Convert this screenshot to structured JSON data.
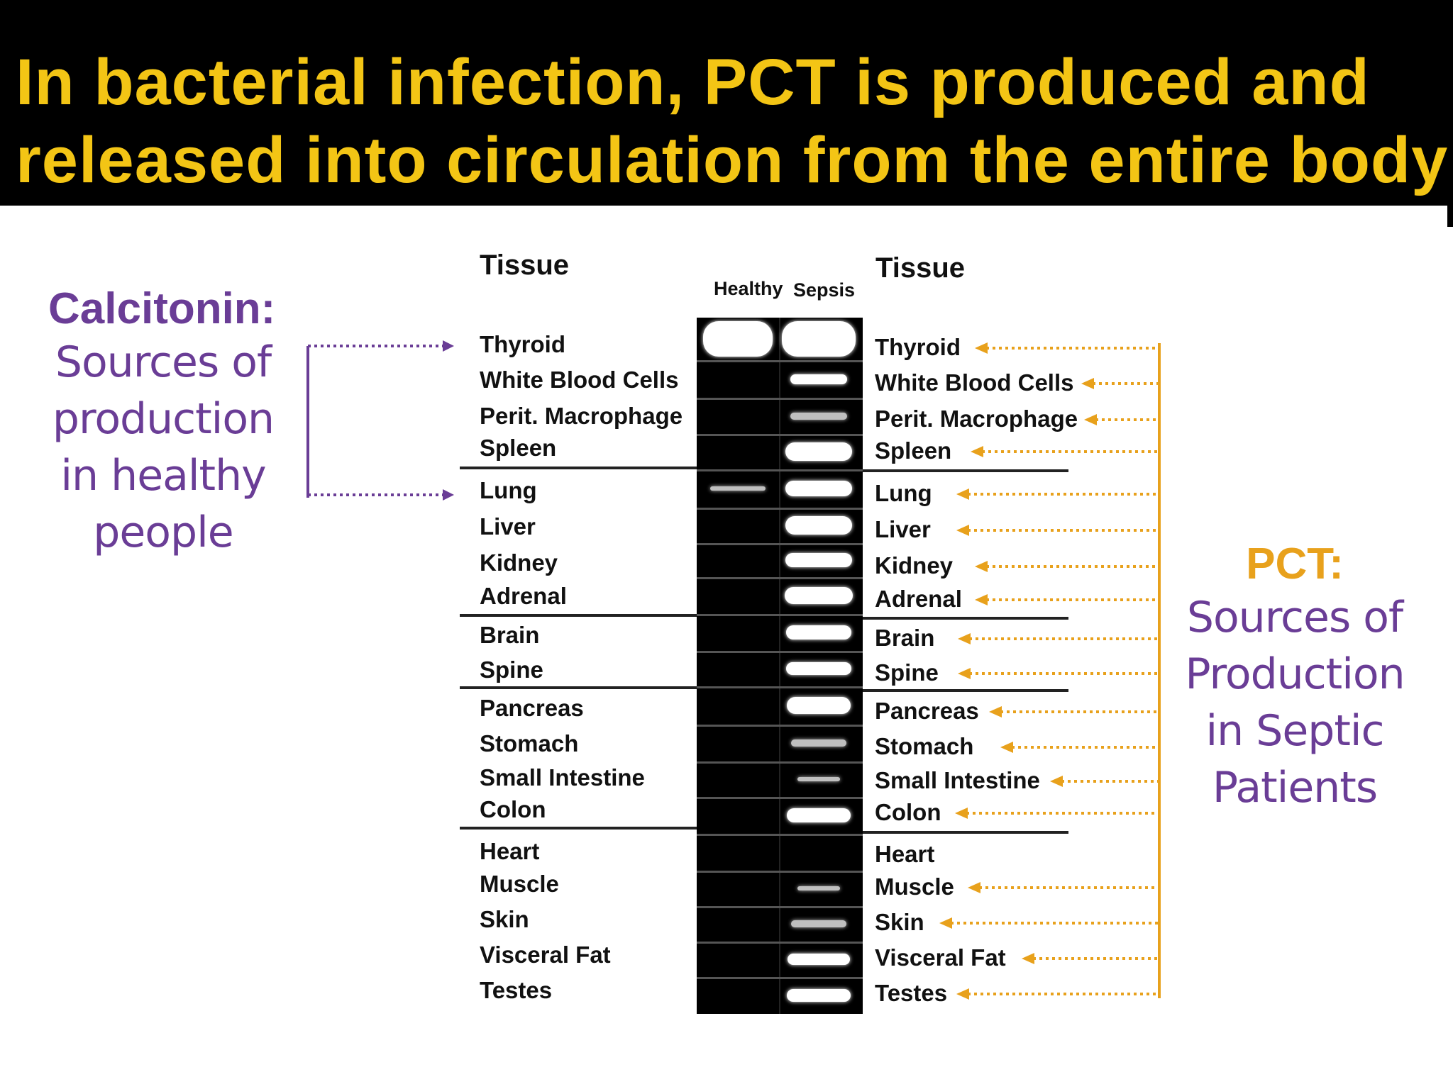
{
  "title": {
    "line1": "In bacterial infection, PCT is produced and",
    "line2": "released into circulation from the entire body"
  },
  "calcitonin": {
    "heading": "Calcitonin:",
    "lines": [
      "Sources of",
      "production",
      "in healthy",
      "people"
    ]
  },
  "pct": {
    "heading": "PCT:",
    "lines": [
      "Sources of",
      "Production",
      "in Septic",
      "Patients"
    ]
  },
  "figure": {
    "left_header": "Tissue",
    "right_header": "Tissue",
    "lane_healthy": "Healthy",
    "lane_sepsis": "Sepsis",
    "tissues": [
      "Thyroid",
      "White Blood Cells",
      "Perit. Macrophage",
      "Spleen",
      "Lung",
      "Liver",
      "Kidney",
      "Adrenal",
      "Brain",
      "Spine",
      "Pancreas",
      "Stomach",
      "Small Intestine",
      "Colon",
      "Heart",
      "Muscle",
      "Skin",
      "Visceral Fat",
      "Testes"
    ]
  },
  "colors": {
    "title_text": "#f3c515",
    "title_bg": "#000000",
    "calcitonin": "#6a3d96",
    "pct": "#e8a11c"
  }
}
